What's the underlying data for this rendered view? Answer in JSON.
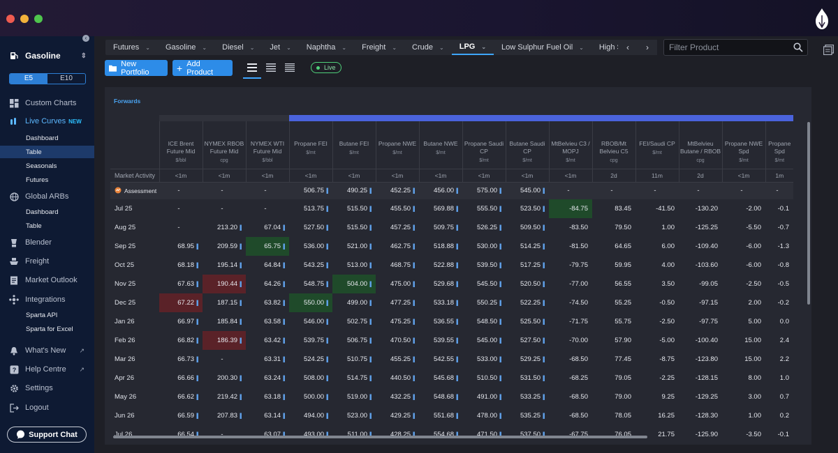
{
  "sidebar": {
    "product": "Gasoline",
    "toggle": [
      "E5",
      "E10"
    ],
    "items": [
      {
        "label": "Custom Charts",
        "icon": "dashboard-icon"
      },
      {
        "label": "Live Curves",
        "badge": "NEW",
        "icon": "curves-icon"
      },
      {
        "label": "Dashboard",
        "sub": true
      },
      {
        "label": "Table",
        "sub": true,
        "active": true
      },
      {
        "label": "Seasonals",
        "sub": true
      },
      {
        "label": "Futures",
        "sub": true
      },
      {
        "label": "Global ARBs",
        "icon": "globe-icon"
      },
      {
        "label": "Dashboard",
        "sub": true
      },
      {
        "label": "Table",
        "sub": true
      },
      {
        "label": "Blender",
        "icon": "blender-icon"
      },
      {
        "label": "Freight",
        "icon": "ship-icon"
      },
      {
        "label": "Market Outlook",
        "icon": "document-icon"
      },
      {
        "label": "Integrations",
        "icon": "integrations-icon"
      },
      {
        "label": "Sparta API",
        "sub": true
      },
      {
        "label": "Sparta for Excel",
        "sub": true
      },
      {
        "label": "What's New",
        "icon": "bell-icon"
      },
      {
        "label": "Help Centre",
        "icon": "help-icon"
      },
      {
        "label": "Settings",
        "icon": "gear-icon"
      },
      {
        "label": "Logout",
        "icon": "logout-icon"
      }
    ],
    "support": "Support Chat"
  },
  "tabs": [
    "Futures",
    "Gasoline",
    "Diesel",
    "Jet",
    "Naphtha",
    "Freight",
    "Crude",
    "LPG",
    "Low Sulphur Fuel Oil",
    "High Sulpl"
  ],
  "active_tab": "LPG",
  "filter_placeholder": "Filter Product",
  "toolbar": {
    "new_portfolio": "New Portfolio",
    "add_product": "Add Product",
    "live": "Live"
  },
  "section": "Forwards",
  "table": {
    "columns": [
      {
        "name": "ICE Brent Future Mid",
        "unit": "$/bbl",
        "activity": "<1m"
      },
      {
        "name": "NYMEX RBOB Future Mid",
        "unit": "cpg",
        "activity": "<1m"
      },
      {
        "name": "NYMEX WTI Future Mid",
        "unit": "$/bbl",
        "activity": "<1m"
      },
      {
        "name": "Propane FEI",
        "unit": "$/mt",
        "activity": "<1m"
      },
      {
        "name": "Butane FEI",
        "unit": "$/mt",
        "activity": "<1m"
      },
      {
        "name": "Propane NWE",
        "unit": "$/mt",
        "activity": "<1m"
      },
      {
        "name": "Butane NWE",
        "unit": "$/mt",
        "activity": "<1m"
      },
      {
        "name": "Propane Saudi CP",
        "unit": "$/mt",
        "activity": "<1m"
      },
      {
        "name": "Butane Saudi CP",
        "unit": "$/mt",
        "activity": "<1m"
      },
      {
        "name": "MtBelvieu C3 / MOPJ",
        "unit": "$/mt",
        "activity": "<1m"
      },
      {
        "name": "RBOB/Mt Belvieu C5",
        "unit": "cpg",
        "activity": "2d"
      },
      {
        "name": "FEI/Saudi CP",
        "unit": "$/mt",
        "activity": "11m"
      },
      {
        "name": "MtBelvieu Butane / RBOB",
        "unit": "cpg",
        "activity": "2d"
      },
      {
        "name": "Propane NWE Spd",
        "unit": "$/mt",
        "activity": "<1m"
      },
      {
        "name": "Propane Spd",
        "unit": "$/mt",
        "activity": "1m"
      }
    ],
    "activity_label": "Market Activity",
    "assessment_label": "Assessment",
    "assessment": [
      "-",
      "-",
      "-",
      "506.75",
      "490.25",
      "452.25",
      "456.00",
      "575.00",
      "545.00",
      "-",
      "-",
      "-",
      "-",
      "-",
      "-"
    ],
    "rows": [
      {
        "label": "Jul 25",
        "values": [
          "-",
          "-",
          "-",
          "513.75",
          "515.50",
          "455.50",
          "569.88",
          "555.50",
          "523.50",
          "-84.75",
          "83.45",
          "-41.50",
          "-130.20",
          "-2.00",
          "-0.1"
        ]
      },
      {
        "label": "Aug 25",
        "values": [
          "-",
          "213.20",
          "67.04",
          "527.50",
          "515.50",
          "457.25",
          "509.75",
          "526.25",
          "509.50",
          "-83.50",
          "79.50",
          "1.00",
          "-125.25",
          "-5.50",
          "-0.7"
        ]
      },
      {
        "label": "Sep 25",
        "values": [
          "68.95",
          "209.59",
          "65.75",
          "536.00",
          "521.00",
          "462.75",
          "518.88",
          "530.00",
          "514.25",
          "-81.50",
          "64.65",
          "6.00",
          "-109.40",
          "-6.00",
          "-1.3"
        ]
      },
      {
        "label": "Oct 25",
        "values": [
          "68.18",
          "195.14",
          "64.84",
          "543.25",
          "513.00",
          "468.75",
          "522.88",
          "539.50",
          "517.25",
          "-79.75",
          "59.95",
          "4.00",
          "-103.60",
          "-6.00",
          "-0.8"
        ]
      },
      {
        "label": "Nov 25",
        "values": [
          "67.63",
          "190.44",
          "64.26",
          "548.75",
          "504.00",
          "475.00",
          "529.68",
          "545.50",
          "520.50",
          "-77.00",
          "56.55",
          "3.50",
          "-99.05",
          "-2.50",
          "-0.5"
        ]
      },
      {
        "label": "Dec 25",
        "values": [
          "67.22",
          "187.15",
          "63.82",
          "550.00",
          "499.00",
          "477.25",
          "533.18",
          "550.25",
          "522.25",
          "-74.50",
          "55.25",
          "-0.50",
          "-97.15",
          "2.00",
          "-0.2"
        ]
      },
      {
        "label": "Jan 26",
        "values": [
          "66.97",
          "185.84",
          "63.58",
          "546.00",
          "502.75",
          "475.25",
          "536.55",
          "548.50",
          "525.50",
          "-71.75",
          "55.75",
          "-2.50",
          "-97.75",
          "5.00",
          "0.0"
        ]
      },
      {
        "label": "Feb 26",
        "values": [
          "66.82",
          "186.39",
          "63.42",
          "539.75",
          "506.75",
          "470.50",
          "539.55",
          "545.00",
          "527.50",
          "-70.00",
          "57.90",
          "-5.00",
          "-100.40",
          "15.00",
          "2.4"
        ]
      },
      {
        "label": "Mar 26",
        "values": [
          "66.73",
          "-",
          "63.31",
          "524.25",
          "510.75",
          "455.25",
          "542.55",
          "533.00",
          "529.25",
          "-68.50",
          "77.45",
          "-8.75",
          "-123.80",
          "15.00",
          "2.2"
        ]
      },
      {
        "label": "Apr 26",
        "values": [
          "66.66",
          "200.30",
          "63.24",
          "508.00",
          "514.75",
          "440.50",
          "545.68",
          "510.50",
          "531.50",
          "-68.25",
          "79.05",
          "-2.25",
          "-128.15",
          "8.00",
          "1.0"
        ]
      },
      {
        "label": "May 26",
        "values": [
          "66.62",
          "219.42",
          "63.18",
          "500.00",
          "519.00",
          "432.25",
          "548.68",
          "491.00",
          "533.25",
          "-68.50",
          "79.00",
          "9.25",
          "-129.25",
          "3.00",
          "0.7"
        ]
      },
      {
        "label": "Jun 26",
        "values": [
          "66.59",
          "207.83",
          "63.14",
          "494.00",
          "523.00",
          "429.25",
          "551.68",
          "478.00",
          "535.25",
          "-68.50",
          "78.05",
          "16.25",
          "-128.30",
          "1.00",
          "0.2"
        ]
      },
      {
        "label": "Jul 26",
        "values": [
          "66.54",
          "-",
          "63.07",
          "493.00",
          "511.00",
          "428.25",
          "554.68",
          "471.50",
          "537.50",
          "-67.75",
          "76.05",
          "21.75",
          "-125.90",
          "-3.50",
          "-0.1"
        ]
      }
    ],
    "highlights": [
      {
        "row": 0,
        "col": 9,
        "type": "pos"
      },
      {
        "row": 2,
        "col": 2,
        "type": "pos"
      },
      {
        "row": 4,
        "col": 1,
        "type": "neg"
      },
      {
        "row": 4,
        "col": 4,
        "type": "pos"
      },
      {
        "row": 5,
        "col": 0,
        "type": "neg"
      },
      {
        "row": 5,
        "col": 3,
        "type": "pos"
      },
      {
        "row": 7,
        "col": 1,
        "type": "neg"
      }
    ],
    "bar_cols_nonzero": true
  },
  "colors": {
    "accent": "#2d8ce8",
    "active_nav": "#1d3a6a",
    "header_bar": "#4a63dc",
    "live": "#4fd07a"
  }
}
